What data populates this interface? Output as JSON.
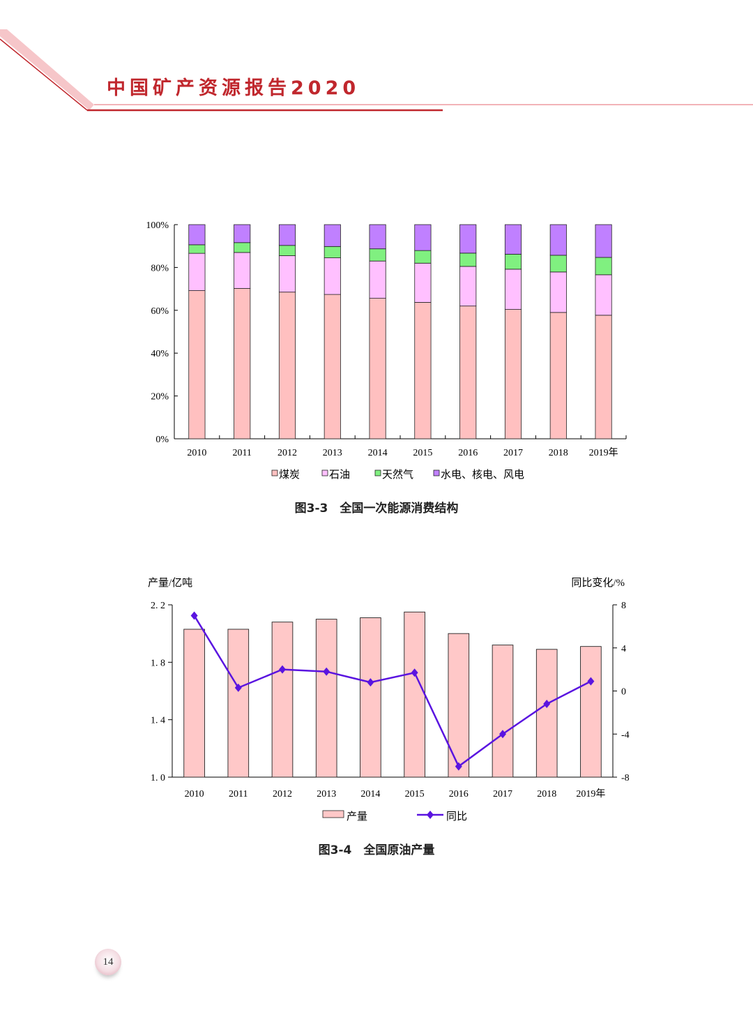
{
  "header": {
    "title": "中国矿产资源报告2020"
  },
  "page_number": "14",
  "colors": {
    "accent": "#c0272d",
    "coal": "#ffc0c0",
    "oil": "#ffc0ff",
    "gas": "#80f080",
    "renewable": "#c080ff",
    "output_bar": "#ffc8c8",
    "yoy_line": "#5a14e0"
  },
  "chart_data": [
    {
      "type": "bar",
      "stacked": true,
      "caption": "图3-3　全国一次能源消费结构",
      "categories": [
        "2010",
        "2011",
        "2012",
        "2013",
        "2014",
        "2015",
        "2016",
        "2017",
        "2018",
        "2019年"
      ],
      "series": [
        {
          "name": "煤炭",
          "values": [
            69.2,
            70.2,
            68.5,
            67.4,
            65.6,
            63.7,
            62.0,
            60.4,
            59.0,
            57.7
          ]
        },
        {
          "name": "石油",
          "values": [
            17.4,
            16.8,
            17.0,
            17.1,
            17.4,
            18.3,
            18.5,
            18.8,
            18.9,
            18.9
          ]
        },
        {
          "name": "天然气",
          "values": [
            4.0,
            4.6,
            4.8,
            5.3,
            5.7,
            5.9,
            6.2,
            7.0,
            7.8,
            8.1
          ]
        },
        {
          "name": "水电、核电、风电",
          "values": [
            9.4,
            8.4,
            9.7,
            10.2,
            11.3,
            12.1,
            13.3,
            13.8,
            14.3,
            15.3
          ]
        }
      ],
      "ylim": [
        0,
        100
      ],
      "yticks": [
        "0%",
        "20%",
        "40%",
        "60%",
        "80%",
        "100%"
      ],
      "legend": "bottom"
    },
    {
      "type": "bar+line",
      "caption": "图3-4　全国原油产量",
      "categories": [
        "2010",
        "2011",
        "2012",
        "2013",
        "2014",
        "2015",
        "2016",
        "2017",
        "2018",
        "2019年"
      ],
      "ylabel_left": "产量/亿吨",
      "ylabel_right": "同比变化/%",
      "ylim_left": [
        1.0,
        2.2
      ],
      "ylim_right": [
        -8,
        8
      ],
      "yticks_left": [
        "1. 0",
        "1. 4",
        "1. 8",
        "2. 2"
      ],
      "yticks_right": [
        "-8",
        "-4",
        "0",
        "4",
        "8"
      ],
      "series": [
        {
          "name": "产量",
          "type": "bar",
          "axis": "left",
          "values": [
            2.03,
            2.03,
            2.08,
            2.1,
            2.11,
            2.15,
            2.0,
            1.92,
            1.89,
            1.91
          ]
        },
        {
          "name": "同比",
          "type": "line",
          "axis": "right",
          "values": [
            7.0,
            0.3,
            2.0,
            1.8,
            0.8,
            1.7,
            -7.0,
            -4.0,
            -1.2,
            0.9
          ]
        }
      ],
      "legend": "bottom"
    }
  ]
}
